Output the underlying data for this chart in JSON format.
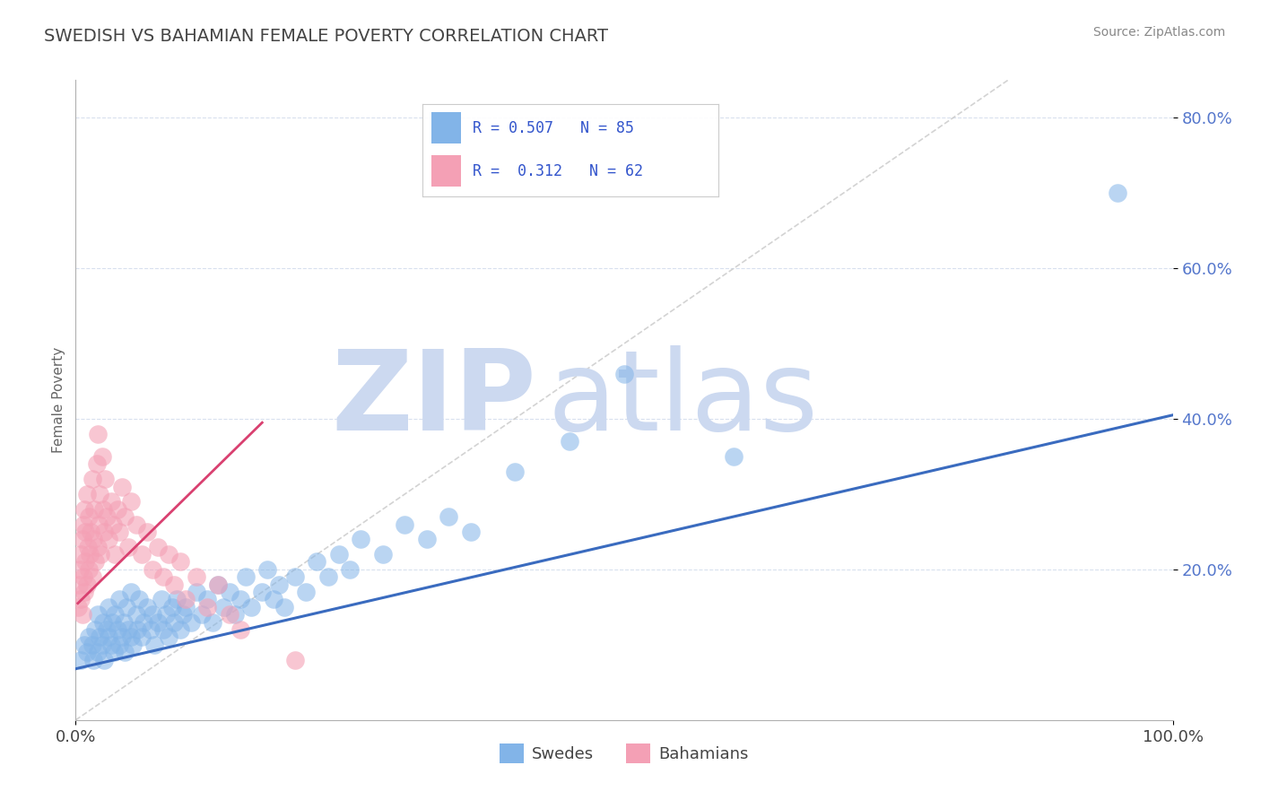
{
  "title": "SWEDISH VS BAHAMIAN FEMALE POVERTY CORRELATION CHART",
  "source_text": "Source: ZipAtlas.com",
  "ylabel": "Female Poverty",
  "xlim": [
    0,
    1.0
  ],
  "ylim": [
    0,
    0.85
  ],
  "ytick_labels": [
    "20.0%",
    "40.0%",
    "60.0%",
    "80.0%"
  ],
  "ytick_values": [
    0.2,
    0.4,
    0.6,
    0.8
  ],
  "legend_r_blue": "0.507",
  "legend_n_blue": "85",
  "legend_r_pink": "0.312",
  "legend_n_pink": "62",
  "blue_color": "#82b4e8",
  "pink_color": "#f4a0b5",
  "blue_line_color": "#3a6bbf",
  "pink_line_color": "#d94070",
  "watermark_zip": "ZIP",
  "watermark_atlas": "atlas",
  "watermark_color": "#ccd9f0",
  "title_color": "#444444",
  "source_color": "#888888",
  "swedes_x": [
    0.005,
    0.008,
    0.01,
    0.012,
    0.015,
    0.016,
    0.018,
    0.02,
    0.02,
    0.022,
    0.024,
    0.025,
    0.026,
    0.028,
    0.03,
    0.03,
    0.032,
    0.033,
    0.035,
    0.036,
    0.038,
    0.04,
    0.04,
    0.042,
    0.044,
    0.045,
    0.046,
    0.048,
    0.05,
    0.05,
    0.052,
    0.055,
    0.056,
    0.058,
    0.06,
    0.062,
    0.065,
    0.068,
    0.07,
    0.072,
    0.075,
    0.078,
    0.08,
    0.082,
    0.085,
    0.088,
    0.09,
    0.092,
    0.095,
    0.098,
    0.1,
    0.105,
    0.11,
    0.115,
    0.12,
    0.125,
    0.13,
    0.135,
    0.14,
    0.145,
    0.15,
    0.155,
    0.16,
    0.17,
    0.175,
    0.18,
    0.185,
    0.19,
    0.2,
    0.21,
    0.22,
    0.23,
    0.24,
    0.25,
    0.26,
    0.28,
    0.3,
    0.32,
    0.34,
    0.36,
    0.4,
    0.45,
    0.5,
    0.6,
    0.95
  ],
  "swedes_y": [
    0.08,
    0.1,
    0.09,
    0.11,
    0.1,
    0.08,
    0.12,
    0.09,
    0.14,
    0.11,
    0.1,
    0.13,
    0.08,
    0.12,
    0.11,
    0.15,
    0.1,
    0.13,
    0.09,
    0.14,
    0.12,
    0.1,
    0.16,
    0.11,
    0.13,
    0.09,
    0.15,
    0.12,
    0.11,
    0.17,
    0.1,
    0.14,
    0.12,
    0.16,
    0.11,
    0.13,
    0.15,
    0.12,
    0.14,
    0.1,
    0.13,
    0.16,
    0.12,
    0.14,
    0.11,
    0.15,
    0.13,
    0.16,
    0.12,
    0.14,
    0.15,
    0.13,
    0.17,
    0.14,
    0.16,
    0.13,
    0.18,
    0.15,
    0.17,
    0.14,
    0.16,
    0.19,
    0.15,
    0.17,
    0.2,
    0.16,
    0.18,
    0.15,
    0.19,
    0.17,
    0.21,
    0.19,
    0.22,
    0.2,
    0.24,
    0.22,
    0.26,
    0.24,
    0.27,
    0.25,
    0.33,
    0.37,
    0.46,
    0.35,
    0.7
  ],
  "bahamians_x": [
    0.002,
    0.003,
    0.004,
    0.005,
    0.005,
    0.006,
    0.006,
    0.007,
    0.007,
    0.008,
    0.008,
    0.009,
    0.009,
    0.01,
    0.01,
    0.011,
    0.012,
    0.012,
    0.013,
    0.014,
    0.015,
    0.015,
    0.016,
    0.017,
    0.018,
    0.019,
    0.02,
    0.02,
    0.021,
    0.022,
    0.023,
    0.024,
    0.025,
    0.026,
    0.027,
    0.028,
    0.03,
    0.032,
    0.034,
    0.036,
    0.038,
    0.04,
    0.042,
    0.045,
    0.048,
    0.05,
    0.055,
    0.06,
    0.065,
    0.07,
    0.075,
    0.08,
    0.085,
    0.09,
    0.095,
    0.1,
    0.11,
    0.12,
    0.13,
    0.14,
    0.15,
    0.2
  ],
  "bahamians_y": [
    0.15,
    0.18,
    0.2,
    0.16,
    0.22,
    0.14,
    0.24,
    0.19,
    0.26,
    0.17,
    0.28,
    0.21,
    0.25,
    0.18,
    0.3,
    0.23,
    0.2,
    0.27,
    0.22,
    0.25,
    0.19,
    0.32,
    0.24,
    0.28,
    0.21,
    0.34,
    0.23,
    0.38,
    0.26,
    0.3,
    0.22,
    0.35,
    0.28,
    0.25,
    0.32,
    0.27,
    0.24,
    0.29,
    0.26,
    0.22,
    0.28,
    0.25,
    0.31,
    0.27,
    0.23,
    0.29,
    0.26,
    0.22,
    0.25,
    0.2,
    0.23,
    0.19,
    0.22,
    0.18,
    0.21,
    0.16,
    0.19,
    0.15,
    0.18,
    0.14,
    0.12,
    0.08
  ],
  "blue_line_x0": 0.0,
  "blue_line_y0": 0.068,
  "blue_line_x1": 1.0,
  "blue_line_y1": 0.405,
  "pink_line_x0": 0.002,
  "pink_line_y0": 0.155,
  "pink_line_x1": 0.17,
  "pink_line_y1": 0.395,
  "dash_line_x0": 0.0,
  "dash_line_y0": 0.0,
  "dash_line_x1": 0.85,
  "dash_line_y1": 0.85
}
